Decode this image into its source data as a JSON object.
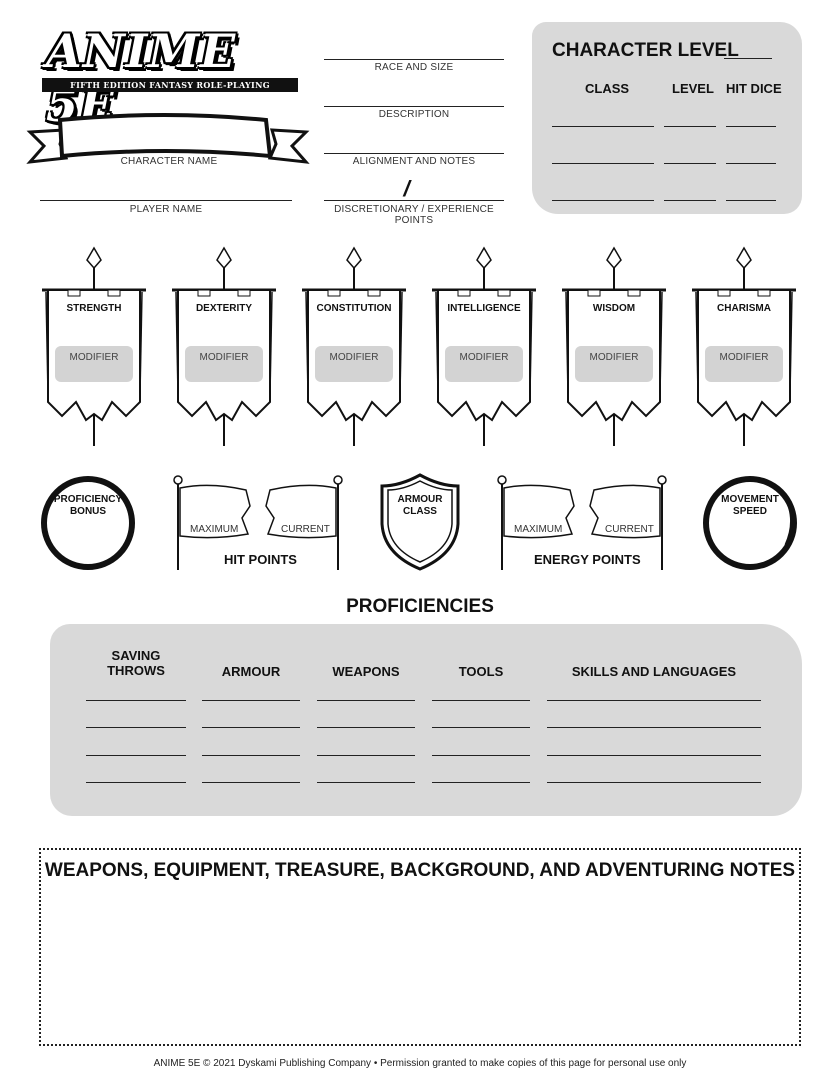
{
  "logo": {
    "title": "ANIME 5E",
    "subtitle": "FIFTH EDITION FANTASY ROLE-PLAYING ADVENTURES"
  },
  "identity": {
    "character_name": "CHARACTER NAME",
    "player_name": "PLAYER NAME",
    "race_and_size": "RACE AND SIZE",
    "description": "DESCRIPTION",
    "alignment_and_notes": "ALIGNMENT AND NOTES",
    "points_separator": "/",
    "discretionary_points": "DISCRETIONARY / EXPERIENCE POINTS"
  },
  "character_level": {
    "title": "CHARACTER LEVEL",
    "columns": [
      "CLASS",
      "LEVEL",
      "HIT DICE"
    ]
  },
  "abilities": [
    {
      "name": "STRENGTH",
      "modifier_label": "MODIFIER"
    },
    {
      "name": "DEXTERITY",
      "modifier_label": "MODIFIER"
    },
    {
      "name": "CONSTITUTION",
      "modifier_label": "MODIFIER"
    },
    {
      "name": "INTELLIGENCE",
      "modifier_label": "MODIFIER"
    },
    {
      "name": "WISDOM",
      "modifier_label": "MODIFIER"
    },
    {
      "name": "CHARISMA",
      "modifier_label": "MODIFIER"
    }
  ],
  "stats": {
    "proficiency_bonus": [
      "PROFICIENCY",
      "BONUS"
    ],
    "hit_points": {
      "label": "HIT POINTS",
      "maximum": "MAXIMUM",
      "current": "CURRENT"
    },
    "armour_class": [
      "ARMOUR",
      "CLASS"
    ],
    "energy_points": {
      "label": "ENERGY POINTS",
      "maximum": "MAXIMUM",
      "current": "CURRENT"
    },
    "movement_speed": [
      "MOVEMENT",
      "SPEED"
    ]
  },
  "proficiencies": {
    "title": "PROFICIENCIES",
    "columns": [
      [
        "SAVING",
        "THROWS"
      ],
      [
        "ARMOUR"
      ],
      [
        "WEAPONS"
      ],
      [
        "TOOLS"
      ],
      [
        "SKILLS AND LANGUAGES"
      ]
    ]
  },
  "notes": {
    "title": "WEAPONS, EQUIPMENT, TREASURE, BACKGROUND, AND ADVENTURING NOTES"
  },
  "footer": "ANIME 5E © 2021 Dyskami Publishing Company • Permission granted to make copies of this page for personal use only",
  "colors": {
    "panel_gray": "#d9d9d9",
    "ink": "#111111"
  }
}
